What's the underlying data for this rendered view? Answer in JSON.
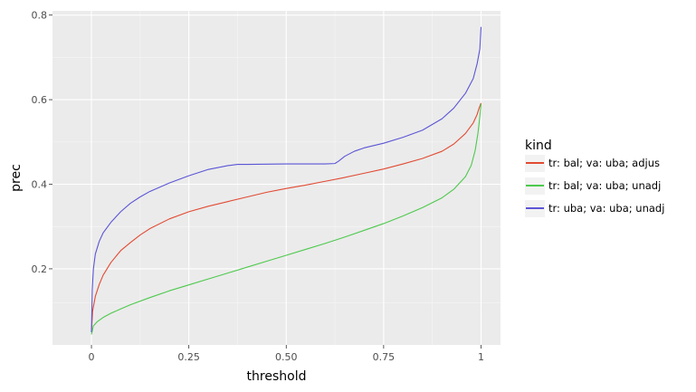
{
  "chart_data": {
    "type": "line",
    "title": "",
    "xlabel": "threshold",
    "ylabel": "prec",
    "xlim": [
      -0.1,
      1.05
    ],
    "ylim": [
      0.02,
      0.81
    ],
    "xticks": [
      0,
      0.25,
      0.5,
      0.75,
      1
    ],
    "xtick_labels": [
      "0",
      "0.25",
      "0.50",
      "0.75",
      "1"
    ],
    "yticks": [
      0.2,
      0.4,
      0.6,
      0.8
    ],
    "ytick_labels": [
      "0.2",
      "0.4",
      "0.6",
      "0.8"
    ],
    "grid": true,
    "legend": {
      "title": "kind",
      "placement": "right"
    },
    "series": [
      {
        "name": "tr: bal; va: uba; adjus",
        "color": "#E24A33",
        "points": [
          [
            0,
            0.05
          ],
          [
            0.003,
            0.1
          ],
          [
            0.01,
            0.135
          ],
          [
            0.02,
            0.163
          ],
          [
            0.03,
            0.185
          ],
          [
            0.05,
            0.215
          ],
          [
            0.075,
            0.243
          ],
          [
            0.1,
            0.262
          ],
          [
            0.125,
            0.28
          ],
          [
            0.15,
            0.295
          ],
          [
            0.2,
            0.318
          ],
          [
            0.25,
            0.335
          ],
          [
            0.3,
            0.348
          ],
          [
            0.35,
            0.359
          ],
          [
            0.4,
            0.37
          ],
          [
            0.45,
            0.381
          ],
          [
            0.5,
            0.39
          ],
          [
            0.55,
            0.398
          ],
          [
            0.6,
            0.407
          ],
          [
            0.65,
            0.416
          ],
          [
            0.7,
            0.426
          ],
          [
            0.75,
            0.436
          ],
          [
            0.8,
            0.448
          ],
          [
            0.85,
            0.461
          ],
          [
            0.9,
            0.478
          ],
          [
            0.93,
            0.495
          ],
          [
            0.96,
            0.52
          ],
          [
            0.98,
            0.545
          ],
          [
            0.99,
            0.565
          ],
          [
            0.995,
            0.58
          ],
          [
            1.0,
            0.592
          ]
        ]
      },
      {
        "name": "tr: bal; va: uba; unadj",
        "color": "#4DC94D",
        "points": [
          [
            0,
            0.045
          ],
          [
            0.005,
            0.065
          ],
          [
            0.015,
            0.075
          ],
          [
            0.03,
            0.085
          ],
          [
            0.05,
            0.095
          ],
          [
            0.075,
            0.105
          ],
          [
            0.1,
            0.115
          ],
          [
            0.15,
            0.132
          ],
          [
            0.2,
            0.148
          ],
          [
            0.25,
            0.162
          ],
          [
            0.3,
            0.176
          ],
          [
            0.35,
            0.19
          ],
          [
            0.4,
            0.204
          ],
          [
            0.45,
            0.218
          ],
          [
            0.5,
            0.232
          ],
          [
            0.55,
            0.246
          ],
          [
            0.6,
            0.26
          ],
          [
            0.65,
            0.275
          ],
          [
            0.7,
            0.291
          ],
          [
            0.75,
            0.307
          ],
          [
            0.8,
            0.325
          ],
          [
            0.85,
            0.345
          ],
          [
            0.9,
            0.368
          ],
          [
            0.93,
            0.388
          ],
          [
            0.96,
            0.418
          ],
          [
            0.975,
            0.445
          ],
          [
            0.985,
            0.48
          ],
          [
            0.992,
            0.52
          ],
          [
            0.997,
            0.56
          ],
          [
            1.0,
            0.59
          ]
        ]
      },
      {
        "name": "tr: uba; va: uba; unadj",
        "color": "#5B55D6",
        "points": [
          [
            0,
            0.05
          ],
          [
            0.002,
            0.15
          ],
          [
            0.005,
            0.2
          ],
          [
            0.01,
            0.235
          ],
          [
            0.02,
            0.265
          ],
          [
            0.03,
            0.285
          ],
          [
            0.05,
            0.31
          ],
          [
            0.075,
            0.335
          ],
          [
            0.1,
            0.355
          ],
          [
            0.125,
            0.37
          ],
          [
            0.15,
            0.383
          ],
          [
            0.2,
            0.403
          ],
          [
            0.25,
            0.42
          ],
          [
            0.3,
            0.435
          ],
          [
            0.35,
            0.444
          ],
          [
            0.375,
            0.447
          ],
          [
            0.4,
            0.447
          ],
          [
            0.5,
            0.448
          ],
          [
            0.6,
            0.448
          ],
          [
            0.625,
            0.449
          ],
          [
            0.635,
            0.455
          ],
          [
            0.65,
            0.466
          ],
          [
            0.675,
            0.478
          ],
          [
            0.7,
            0.486
          ],
          [
            0.75,
            0.497
          ],
          [
            0.8,
            0.511
          ],
          [
            0.85,
            0.528
          ],
          [
            0.9,
            0.555
          ],
          [
            0.93,
            0.58
          ],
          [
            0.96,
            0.615
          ],
          [
            0.98,
            0.65
          ],
          [
            0.99,
            0.685
          ],
          [
            0.997,
            0.72
          ],
          [
            1.0,
            0.772
          ]
        ]
      }
    ]
  }
}
